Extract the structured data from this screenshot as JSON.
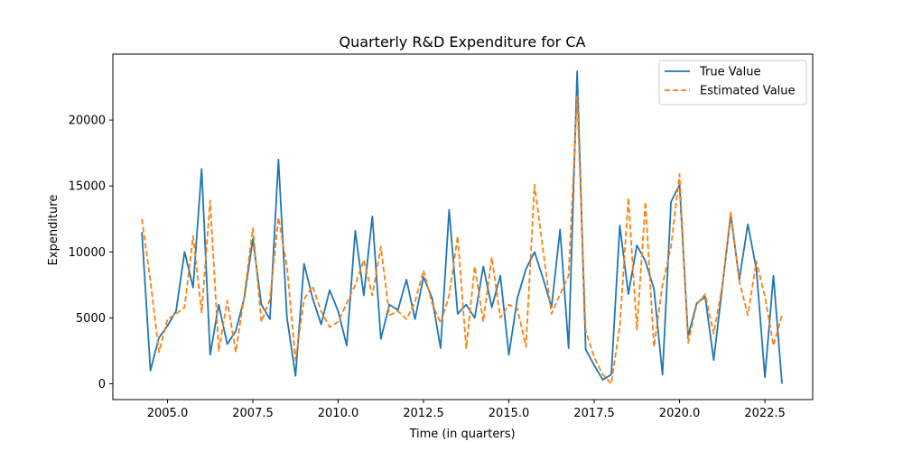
{
  "chart_data": {
    "type": "line",
    "title": "Quarterly R&D Expenditure for CA",
    "xlabel": "Time (in quarters)",
    "ylabel": "Expenditure",
    "xlim": [
      2003.4,
      2023.9
    ],
    "ylim": [
      -1200,
      25000
    ],
    "x_ticks": [
      2005.0,
      2007.5,
      2010.0,
      2012.5,
      2015.0,
      2017.5,
      2020.0,
      2022.5
    ],
    "x_tick_labels": [
      "2005.0",
      "2007.5",
      "2010.0",
      "2012.5",
      "2015.0",
      "2017.5",
      "2020.0",
      "2022.5"
    ],
    "y_ticks": [
      0,
      5000,
      10000,
      15000,
      20000
    ],
    "y_tick_labels": [
      "0",
      "5000",
      "10000",
      "15000",
      "20000"
    ],
    "grid": false,
    "legend_position": "top-right",
    "x_start": 2004.25,
    "x_step": 0.25,
    "series": [
      {
        "name": "True Value",
        "color": "#1f77b4",
        "style": "solid",
        "values": [
          11500,
          1000,
          3500,
          4400,
          5500,
          10000,
          7300,
          16300,
          2200,
          6000,
          3000,
          4000,
          6500,
          11000,
          6000,
          4900,
          17000,
          5000,
          600,
          9100,
          6500,
          4500,
          7100,
          5500,
          2900,
          11600,
          6700,
          12700,
          3400,
          6000,
          5600,
          7900,
          4900,
          8100,
          6500,
          2700,
          13200,
          5300,
          6000,
          5000,
          8900,
          5800,
          8200,
          2200,
          6500,
          8700,
          10000,
          8000,
          5800,
          11700,
          2700,
          23700,
          2600,
          1400,
          300,
          700,
          12000,
          6800,
          10500,
          9300,
          7200,
          700,
          13800,
          15100,
          3600,
          6100,
          6600,
          1800,
          7300,
          12800,
          7900,
          12100,
          8700,
          500,
          8200,
          0
        ]
      },
      {
        "name": "Estimated Value",
        "color": "#ff7f0e",
        "style": "dashed",
        "values": [
          12500,
          7800,
          2400,
          4900,
          5300,
          5800,
          11200,
          5400,
          13900,
          2500,
          6300,
          2400,
          6700,
          11800,
          4700,
          6400,
          12600,
          8900,
          1800,
          6400,
          7400,
          5500,
          4300,
          4700,
          6100,
          7500,
          9400,
          6700,
          10400,
          5200,
          5500,
          4900,
          6200,
          8600,
          6100,
          4600,
          6700,
          11200,
          2700,
          8900,
          4700,
          9600,
          5000,
          6000,
          5700,
          2800,
          15100,
          10200,
          5300,
          6800,
          8200,
          21800,
          4000,
          2000,
          700,
          0,
          4400,
          14100,
          4100,
          13800,
          2800,
          7500,
          10400,
          15900,
          3100,
          6000,
          6800,
          3800,
          7400,
          13000,
          7800,
          5200,
          9300,
          6600,
          2900,
          5200
        ]
      }
    ]
  }
}
